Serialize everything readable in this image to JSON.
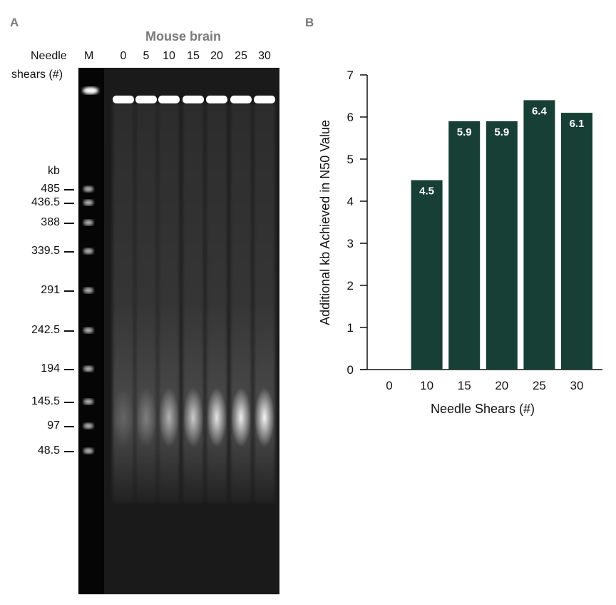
{
  "panel_a": {
    "label": "A",
    "title": "Mouse brain",
    "row_label_line1": "Needle",
    "row_label_line2": "shears (#)",
    "marker_label": "M",
    "lanes": [
      "0",
      "5",
      "10",
      "15",
      "20",
      "25",
      "30"
    ],
    "ladder_unit": "kb",
    "ladder": [
      "485",
      "436.5",
      "388",
      "339.5",
      "291",
      "242.5",
      "194",
      "145.5",
      "97",
      "48.5"
    ]
  },
  "panel_b": {
    "label": "B"
  },
  "chart_data": {
    "type": "bar",
    "title": "",
    "xlabel": "Needle Shears (#)",
    "ylabel": "Additional kb Achieved in N50 Value",
    "categories": [
      "0",
      "10",
      "15",
      "20",
      "25",
      "30"
    ],
    "values": [
      0,
      4.5,
      5.9,
      5.9,
      6.4,
      6.1
    ],
    "data_labels": [
      "",
      "4.5",
      "5.9",
      "5.9",
      "6.4",
      "6.1"
    ],
    "ylim": [
      0,
      7
    ],
    "yticks": [
      "0",
      "1",
      "2",
      "3",
      "4",
      "5",
      "6",
      "7"
    ],
    "grid": false,
    "bar_color": "#173f35",
    "label_color": "#ffffff"
  }
}
